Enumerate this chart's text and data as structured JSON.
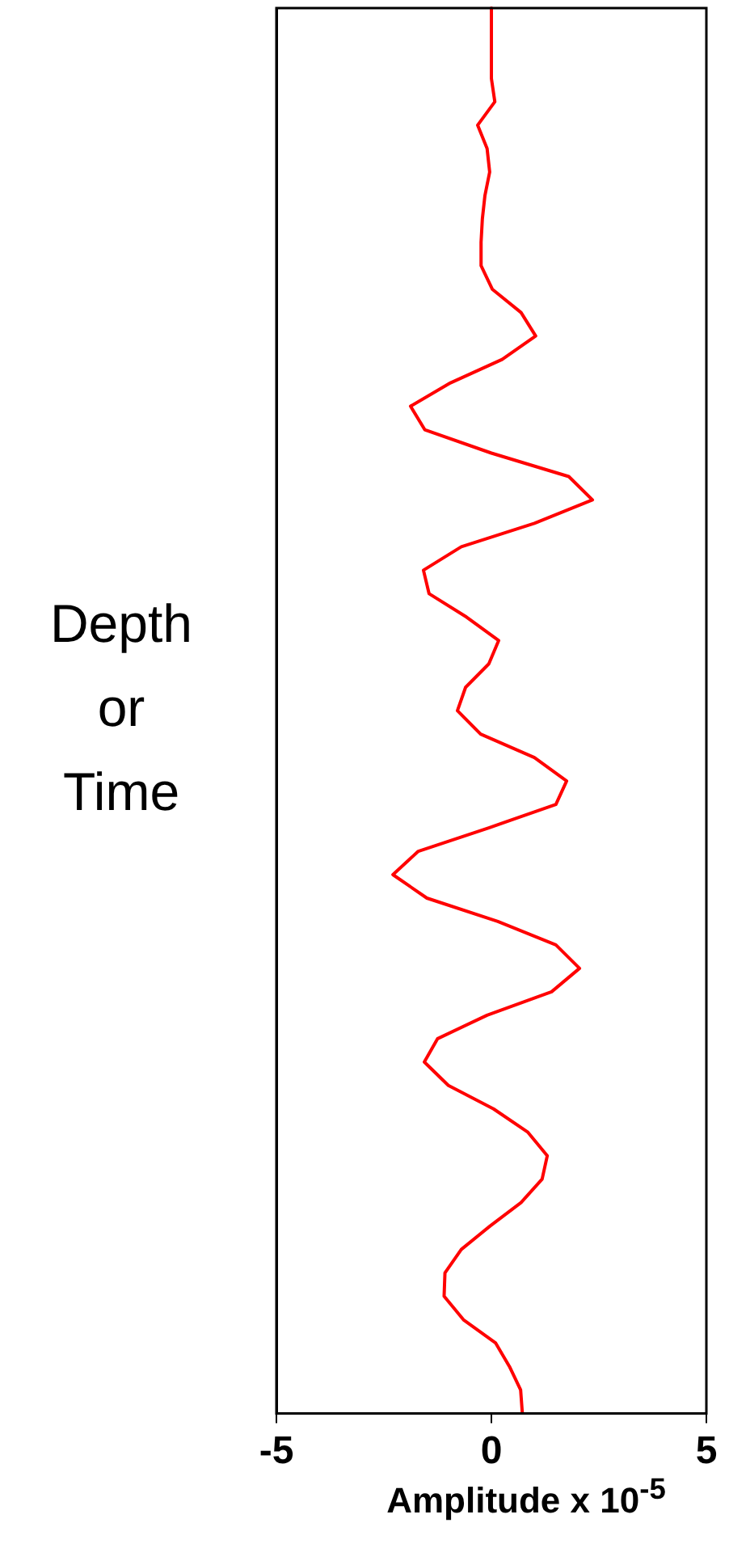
{
  "chart_data": {
    "type": "line",
    "orientation": "horizontal",
    "xlabel": "Amplitude x 10$^{-5}$",
    "ylabel": "Depth or Time",
    "categories": [
      null,
      null,
      null,
      null,
      null,
      null,
      null,
      null,
      null,
      null,
      null,
      null,
      null,
      null,
      null,
      null,
      null,
      null,
      null,
      null,
      null,
      null,
      null,
      null,
      null,
      null,
      null,
      null,
      null,
      null,
      null,
      null,
      null,
      null,
      null,
      null,
      null,
      null,
      null,
      null,
      null,
      null,
      null,
      null,
      null,
      null,
      null,
      null,
      null,
      null,
      null,
      null,
      null,
      null,
      null,
      null,
      null,
      null,
      null,
      null,
      null
    ],
    "series": [
      {
        "color": "#ff0000",
        "values": [
          0,
          0,
          0,
          0,
          0.08,
          -0.32,
          -0.1,
          -0.04,
          -0.15,
          -0.21,
          -0.24,
          -0.24,
          0.02,
          0.69,
          1.03,
          0.25,
          -0.95,
          -1.88,
          -1.55,
          0,
          1.8,
          2.35,
          1,
          -0.7,
          -1.58,
          -1.45,
          -0.58,
          0.17,
          -0.06,
          -0.6,
          -0.79,
          -0.25,
          1,
          1.75,
          1.5,
          -0.06,
          -1.7,
          -2.29,
          -1.5,
          0.15,
          1.5,
          2.05,
          1.4,
          -0.1,
          -1.25,
          -1.56,
          -1,
          0.05,
          0.85,
          1.3,
          1.18,
          0.69,
          -0.03,
          -0.7,
          -1.08,
          -1.1,
          -0.65,
          0.1,
          0.42,
          0.68,
          0.72
        ]
      }
    ],
    "xlim": [
      -5,
      5
    ],
    "xticks": [
      -5,
      0,
      5
    ],
    "tick_labels": "x",
    "grid": false,
    "legend": false,
    "marker": "none",
    "line_style": "solid"
  }
}
